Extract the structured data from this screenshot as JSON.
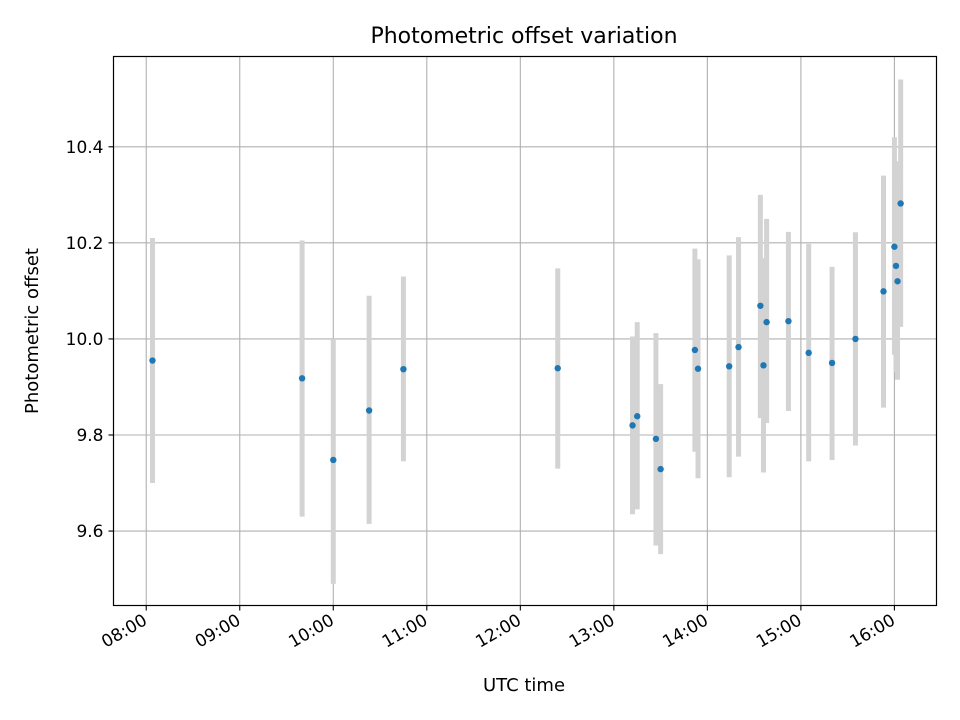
{
  "chart_data": {
    "type": "scatter",
    "title": "Photometric offset variation",
    "xlabel": "UTC time",
    "ylabel": "Photometric offset",
    "x_ticks": [
      "08:00",
      "09:00",
      "10:00",
      "11:00",
      "12:00",
      "13:00",
      "14:00",
      "15:00",
      "16:00"
    ],
    "y_ticks": [
      "9.6",
      "9.8",
      "10.0",
      "10.2",
      "10.4"
    ],
    "xlim": [
      "07:39",
      "16:27"
    ],
    "ylim": [
      9.445,
      10.588
    ],
    "grid": true,
    "colors": {
      "point": "#1f77b4",
      "errorbar": "#d3d3d3",
      "grid": "#b0b0b0"
    },
    "points": [
      {
        "x": "08:04",
        "y": 9.955,
        "err_low": 9.7,
        "err_high": 10.21
      },
      {
        "x": "09:40",
        "y": 9.918,
        "err_low": 9.63,
        "err_high": 10.205
      },
      {
        "x": "10:00",
        "y": 9.748,
        "err_low": 9.49,
        "err_high": 10.0
      },
      {
        "x": "10:23",
        "y": 9.851,
        "err_low": 9.615,
        "err_high": 10.09
      },
      {
        "x": "10:45",
        "y": 9.937,
        "err_low": 9.745,
        "err_high": 10.13
      },
      {
        "x": "12:24",
        "y": 9.939,
        "err_low": 9.73,
        "err_high": 10.147
      },
      {
        "x": "13:12",
        "y": 9.82,
        "err_low": 9.635,
        "err_high": 10.005
      },
      {
        "x": "13:15",
        "y": 9.839,
        "err_low": 9.645,
        "err_high": 10.035
      },
      {
        "x": "13:27",
        "y": 9.792,
        "err_low": 9.57,
        "err_high": 10.012
      },
      {
        "x": "13:30",
        "y": 9.729,
        "err_low": 9.552,
        "err_high": 9.906
      },
      {
        "x": "13:52",
        "y": 9.977,
        "err_low": 9.765,
        "err_high": 10.188
      },
      {
        "x": "13:54",
        "y": 9.938,
        "err_low": 9.71,
        "err_high": 10.166
      },
      {
        "x": "14:14",
        "y": 9.943,
        "err_low": 9.712,
        "err_high": 10.174
      },
      {
        "x": "14:20",
        "y": 9.983,
        "err_low": 9.755,
        "err_high": 10.212
      },
      {
        "x": "14:34",
        "y": 10.069,
        "err_low": 9.835,
        "err_high": 10.3
      },
      {
        "x": "14:36",
        "y": 9.945,
        "err_low": 9.722,
        "err_high": 10.168
      },
      {
        "x": "14:38",
        "y": 10.035,
        "err_low": 9.825,
        "err_high": 10.25
      },
      {
        "x": "14:52",
        "y": 10.037,
        "err_low": 9.85,
        "err_high": 10.223
      },
      {
        "x": "15:05",
        "y": 9.971,
        "err_low": 9.745,
        "err_high": 10.198
      },
      {
        "x": "15:20",
        "y": 9.95,
        "err_low": 9.748,
        "err_high": 10.15
      },
      {
        "x": "15:35",
        "y": 10.0,
        "err_low": 9.778,
        "err_high": 10.222
      },
      {
        "x": "15:53",
        "y": 10.099,
        "err_low": 9.857,
        "err_high": 10.34
      },
      {
        "x": "16:00",
        "y": 10.192,
        "err_low": 9.967,
        "err_high": 10.42
      },
      {
        "x": "16:01",
        "y": 10.152,
        "err_low": 9.93,
        "err_high": 10.37
      },
      {
        "x": "16:02",
        "y": 10.12,
        "err_low": 9.915,
        "err_high": 10.33
      },
      {
        "x": "16:04",
        "y": 10.282,
        "err_low": 10.025,
        "err_high": 10.54
      }
    ]
  }
}
